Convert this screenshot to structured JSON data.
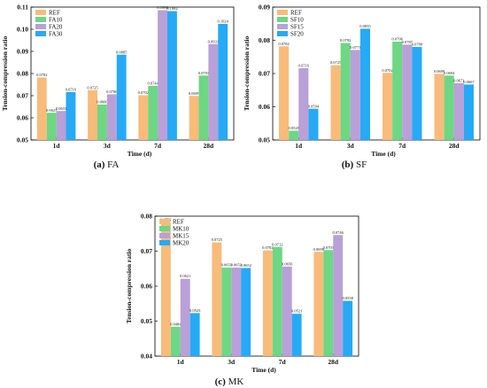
{
  "colors": [
    "#f8bb7a",
    "#6dd784",
    "#b9a0d8",
    "#26aaf5"
  ],
  "chart_data": [
    {
      "type": "bar",
      "caption_letter": "(a)",
      "caption_text": "FA",
      "xlabel": "Time  (d)",
      "ylabel": "Tension-compression ratio",
      "categories": [
        "1d",
        "3d",
        "7d",
        "28d"
      ],
      "ylim": [
        0.05,
        0.11
      ],
      "yticks": [
        0.05,
        0.06,
        0.07,
        0.08,
        0.09,
        0.1,
        0.11
      ],
      "ytick_labels": [
        "0.05",
        "0.06",
        "0.07",
        "0.08",
        "0.09",
        "0.10",
        "0.11"
      ],
      "legend_position": "top-left",
      "series": [
        {
          "name": "REF",
          "values": [
            0.0782,
            0.0725,
            0.0702,
            0.0699
          ],
          "labels": [
            "0.0782",
            "0.0725",
            "0.0702",
            "0.0699"
          ]
        },
        {
          "name": "FA10",
          "values": [
            0.0623,
            0.066,
            0.0744,
            0.0791
          ],
          "labels": [
            "0.0623",
            "0.0660",
            "0.0744",
            "0.0791"
          ]
        },
        {
          "name": "FA20",
          "values": [
            0.0631,
            0.0706,
            0.1086,
            0.0933
          ],
          "labels": [
            "0.0631",
            "0.0706",
            "0.1086",
            "0.0933"
          ]
        },
        {
          "name": "FA30",
          "values": [
            0.0716,
            0.0885,
            0.1082,
            0.1024
          ],
          "labels": [
            "0.0716",
            "0.0885",
            "0.1082",
            "0.1024"
          ]
        }
      ]
    },
    {
      "type": "bar",
      "caption_letter": "(b)",
      "caption_text": "SF",
      "xlabel": "Time  (d)",
      "ylabel": "Tension-compression ratio",
      "categories": [
        "1d",
        "3d",
        "7d",
        "28d"
      ],
      "ylim": [
        0.05,
        0.09
      ],
      "yticks": [
        0.05,
        0.06,
        0.07,
        0.08,
        0.09
      ],
      "ytick_labels": [
        "0.05",
        "0.06",
        "0.07",
        "0.08",
        "0.09"
      ],
      "legend_position": "top-left",
      "series": [
        {
          "name": "REF",
          "values": [
            0.0782,
            0.0725,
            0.0702,
            0.0699
          ],
          "labels": [
            "0.0782",
            "0.0725",
            "0.0702",
            "0.0699"
          ]
        },
        {
          "name": "SF10",
          "values": [
            0.0528,
            0.0792,
            0.0796,
            0.0694
          ],
          "labels": [
            "0.0528",
            "0.0792",
            "0.0796",
            "0.0694"
          ]
        },
        {
          "name": "SF15",
          "values": [
            0.0716,
            0.0771,
            0.0787,
            0.0671
          ],
          "labels": [
            "0.0716",
            "0.0771",
            "0.0787",
            "0.0671"
          ]
        },
        {
          "name": "SF20",
          "values": [
            0.0594,
            0.0835,
            0.078,
            0.0667
          ],
          "labels": [
            "0.0594",
            "0.0835",
            "0.0780",
            "0.0667"
          ]
        }
      ]
    },
    {
      "type": "bar",
      "caption_letter": "(c)",
      "caption_text": "MK",
      "xlabel": "Time  (d)",
      "ylabel": "Tension-compression ratio",
      "categories": [
        "1d",
        "3d",
        "7d",
        "28d"
      ],
      "ylim": [
        0.04,
        0.08
      ],
      "yticks": [
        0.04,
        0.05,
        0.06,
        0.07,
        0.08
      ],
      "ytick_labels": [
        "0.04",
        "0.05",
        "0.06",
        "0.07",
        "0.08"
      ],
      "legend_position": "top-left",
      "series": [
        {
          "name": "REF",
          "values": [
            0.0782,
            0.0725,
            0.0702,
            0.0698
          ],
          "labels": [
            "0.0782",
            "0.0725",
            "0.0702",
            "0.0698"
          ]
        },
        {
          "name": "MK10",
          "values": [
            0.0484,
            0.0653,
            0.0712,
            0.0703
          ],
          "labels": [
            "0.0484",
            "0.0653",
            "0.0712",
            "0.0703"
          ]
        },
        {
          "name": "MK15",
          "values": [
            0.0621,
            0.0653,
            0.0656,
            0.0746
          ],
          "labels": [
            "0.0621",
            "0.0653",
            "0.0656",
            "0.0746"
          ]
        },
        {
          "name": "MK20",
          "values": [
            0.0523,
            0.0652,
            0.0521,
            0.0558
          ],
          "labels": [
            "0.0523",
            "0.0652",
            "0.0521",
            "0.0558"
          ]
        }
      ]
    }
  ]
}
